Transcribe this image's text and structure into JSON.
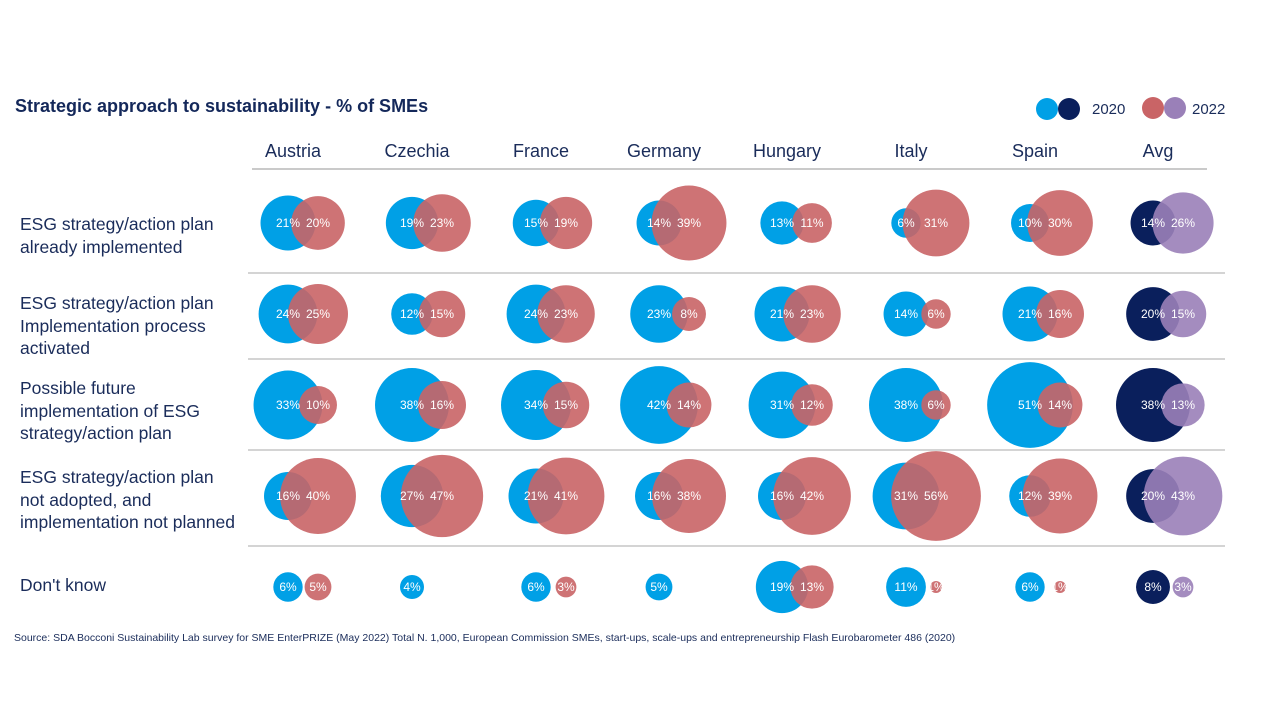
{
  "title": "Strategic approach to sustainability - % of SMEs",
  "source": "Source: SDA Bocconi Sustainability Lab survey for SME EnterPRIZE (May 2022) Total N. 1,000, European Commission SMEs, start-ups, scale-ups and entrepreneurship Flash Eurobarometer 486 (2020)",
  "legend": {
    "label_2020": "2020",
    "label_2022": "2022"
  },
  "colors": {
    "country_2020": "#00a0e6",
    "country_2022": "#c96466",
    "avg_2020": "#0a1f5c",
    "avg_2022": "#9a80b8",
    "title_text": "#14285a",
    "divider": "#aaaaaa"
  },
  "chart_data": {
    "type": "bubble",
    "columns": [
      "Austria",
      "Czechia",
      "France",
      "Germany",
      "Hungary",
      "Italy",
      "Spain",
      "Avg"
    ],
    "rows": [
      {
        "lines": [
          "ESG strategy/action plan",
          "already implemented"
        ]
      },
      {
        "lines": [
          "ESG strategy/action plan",
          "Implementation process",
          "activated"
        ]
      },
      {
        "lines": [
          "Possible future",
          "implementation of ESG",
          "strategy/action plan"
        ]
      },
      {
        "lines": [
          "ESG strategy/action plan",
          "not adopted, and",
          "implementation not planned"
        ]
      },
      {
        "lines": [
          "Don't know"
        ]
      }
    ],
    "series": [
      {
        "name": "2020",
        "values": [
          [
            21,
            19,
            15,
            14,
            13,
            6,
            10,
            14
          ],
          [
            24,
            12,
            24,
            23,
            21,
            14,
            21,
            20
          ],
          [
            33,
            38,
            34,
            42,
            31,
            38,
            51,
            38
          ],
          [
            16,
            27,
            21,
            16,
            16,
            31,
            12,
            20
          ],
          [
            6,
            4,
            6,
            5,
            19,
            11,
            6,
            8
          ]
        ]
      },
      {
        "name": "2022",
        "values": [
          [
            20,
            23,
            19,
            39,
            11,
            31,
            30,
            26
          ],
          [
            25,
            15,
            23,
            8,
            23,
            6,
            16,
            15
          ],
          [
            10,
            16,
            15,
            14,
            12,
            6,
            14,
            13
          ],
          [
            40,
            47,
            41,
            38,
            42,
            56,
            39,
            43
          ],
          [
            5,
            null,
            3,
            null,
            13,
            1,
            1,
            3
          ]
        ]
      }
    ],
    "labels_2022": [
      [
        "20%",
        "23%",
        "19%",
        "39%",
        "11%",
        "31%",
        "30%",
        "26%"
      ],
      [
        "25%",
        "15%",
        "23%",
        "8%",
        "23%",
        "6%",
        "16%",
        "15%"
      ],
      [
        "10%",
        "16%",
        "15%",
        "14%",
        "12%",
        "6%",
        "14%",
        "13%"
      ],
      [
        "40%",
        "47%",
        "41%",
        "38%",
        "42%",
        "56%",
        "39%",
        "43%"
      ],
      [
        "5%",
        "",
        "3%",
        "",
        "13%",
        "1%",
        "1%",
        "3%"
      ]
    ],
    "labels_2020": [
      [
        "21%",
        "19%",
        "15%",
        "14%",
        "13%",
        "6%",
        "10%",
        "14%"
      ],
      [
        "24%",
        "12%",
        "24%",
        "23%",
        "21%",
        "14%",
        "21%",
        "20%"
      ],
      [
        "33%",
        "38%",
        "34%",
        "42%",
        "31%",
        "38%",
        "51%",
        "38%"
      ],
      [
        "16%",
        "27%",
        "21%",
        "16%",
        "16%",
        "31%",
        "12%",
        "20%"
      ],
      [
        "6%",
        "4%",
        "6%",
        "5%",
        "19%",
        "11%",
        "6%",
        "8%"
      ]
    ]
  }
}
